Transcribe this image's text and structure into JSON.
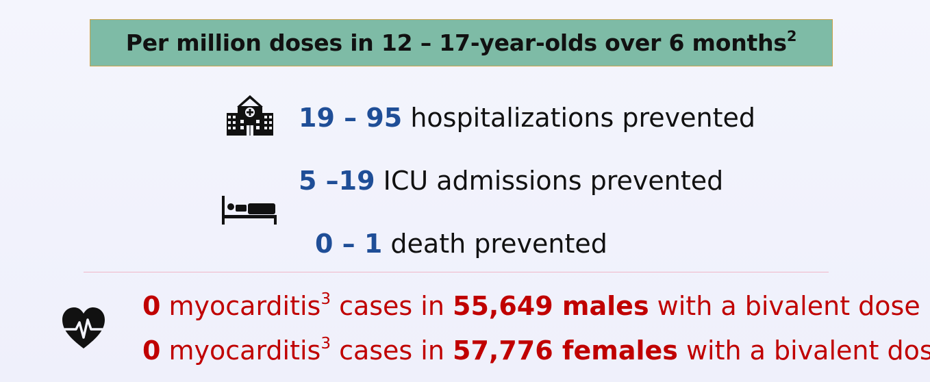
{
  "title": {
    "text": "Per million doses in 12 – 17-year-olds over 6 months",
    "sup": "2"
  },
  "stats": [
    {
      "num": "19 – 95",
      "label": " hospitalizations prevented"
    },
    {
      "num": "5 –19",
      "label": " ICU admissions prevented"
    },
    {
      "num": "0 – 1",
      "label": " death prevented"
    }
  ],
  "myocarditis": [
    {
      "count": "0",
      "t1": " myocarditis",
      "sup": "3",
      "t2": " cases in ",
      "group": "55,649 males",
      "t3": " with a bivalent dose"
    },
    {
      "count": "0",
      "t1": " myocarditis",
      "sup": "3",
      "t2": " cases in ",
      "group": "57,776 females",
      "t3": " with a bivalent dose"
    }
  ],
  "icons": [
    "hospital-icon",
    "hospital-bed-icon",
    "heart-pulse-icon"
  ],
  "colors": {
    "title_bg": "#7ebba6",
    "stat_number": "#1f4e97",
    "myocarditis_text": "#c00000",
    "divider": "#f0b7c8"
  }
}
